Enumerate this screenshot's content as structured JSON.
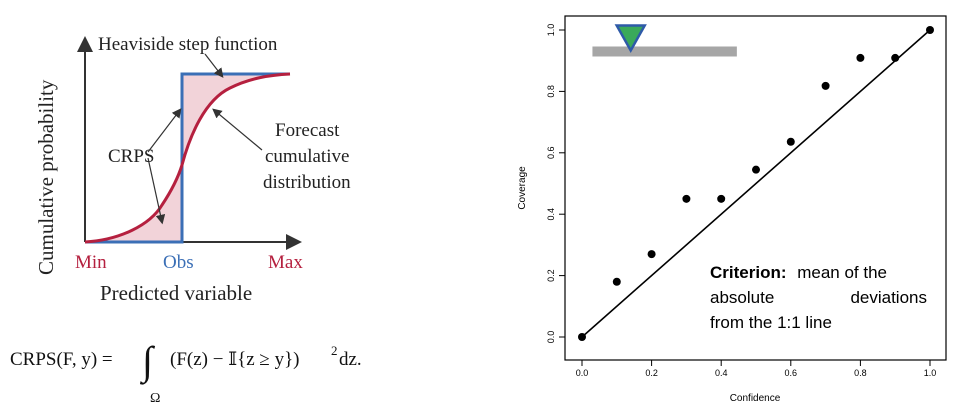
{
  "left_figure": {
    "heaviside_label": "Heaviside step function",
    "y_axis_label": "Cumulative probability",
    "x_axis_label": "Predicted variable",
    "crps_label": "CRPS",
    "forecast_label_lines": [
      "Forecast",
      "cumulative",
      "distribution"
    ],
    "tick_min": "Min",
    "tick_obs": "Obs",
    "tick_max": "Max",
    "colors": {
      "forecast": "#b5203f",
      "heaviside": "#3b6fb6",
      "shade": "#f2d3d9",
      "min_max_text": "#b5203f",
      "obs_text": "#3b6fb6"
    }
  },
  "formula": {
    "lhs": "CRPS(F, y) =",
    "integrand": "(F(z) − 𝕀{z ≥ y})",
    "exponent": "2",
    "differential": "dz.",
    "domain": "Ω"
  },
  "chart_data": {
    "type": "scatter",
    "xlabel": "Confidence",
    "ylabel": "Coverage",
    "xlim": [
      0.0,
      1.0
    ],
    "ylim": [
      0.0,
      1.0
    ],
    "x_ticks": [
      "0.0",
      "0.2",
      "0.4",
      "0.6",
      "0.8",
      "1.0"
    ],
    "y_ticks": [
      "0.0",
      "0.2",
      "0.4",
      "0.6",
      "0.8",
      "1.0"
    ],
    "points": [
      {
        "x": 0.0,
        "y": 0.0
      },
      {
        "x": 0.1,
        "y": 0.18
      },
      {
        "x": 0.2,
        "y": 0.27
      },
      {
        "x": 0.3,
        "y": 0.45
      },
      {
        "x": 0.4,
        "y": 0.45
      },
      {
        "x": 0.5,
        "y": 0.545
      },
      {
        "x": 0.6,
        "y": 0.636
      },
      {
        "x": 0.7,
        "y": 0.818
      },
      {
        "x": 0.8,
        "y": 0.909
      },
      {
        "x": 0.9,
        "y": 0.909
      },
      {
        "x": 1.0,
        "y": 1.0
      }
    ],
    "reference_line": [
      [
        0,
        0
      ],
      [
        1,
        1
      ]
    ],
    "indicator": {
      "bar_from": 0.03,
      "bar_to": 0.445,
      "marker_at": 0.14,
      "level": 0.93,
      "bar_color": "#a6a6a6",
      "marker_color": "#3aa95a",
      "marker_edge": "#2e5aa8"
    },
    "annotation": {
      "bold": "Criterion:",
      "lines": [
        "mean of the",
        "absolute",
        "deviations",
        "from the 1:1 line"
      ]
    }
  }
}
